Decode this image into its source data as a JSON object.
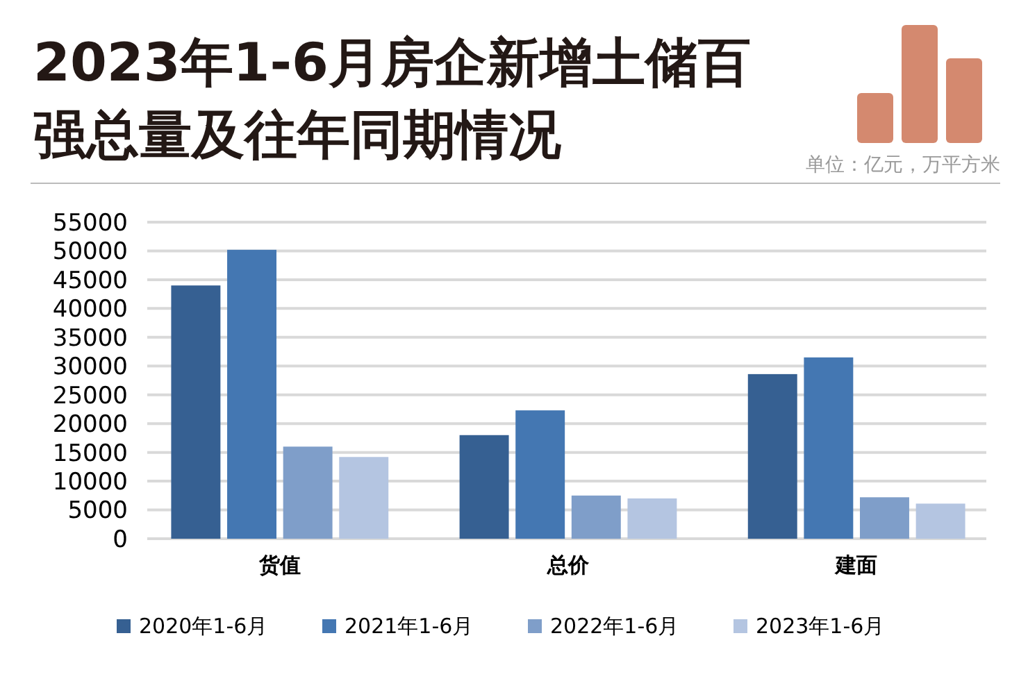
{
  "chart_data": {
    "type": "bar",
    "title": "2023年1-6月房企新增土储百强总量及往年同期情况",
    "subtitle": "单位：亿元，万平方米",
    "categories": [
      "货值",
      "总价",
      "建面"
    ],
    "series": [
      {
        "name": "2020年1-6月",
        "color": "#366092",
        "values": [
          44000,
          18000,
          28600
        ]
      },
      {
        "name": "2021年1-6月",
        "color": "#4477b2",
        "values": [
          50200,
          22300,
          31500
        ]
      },
      {
        "name": "2022年1-6月",
        "color": "#7f9ec9",
        "values": [
          16000,
          7500,
          7200
        ]
      },
      {
        "name": "2023年1-6月",
        "color": "#b4c5e1",
        "values": [
          14200,
          7000,
          6100
        ]
      }
    ],
    "ylim": [
      0,
      55000
    ],
    "yticks": [
      0,
      5000,
      10000,
      15000,
      20000,
      25000,
      30000,
      35000,
      40000,
      45000,
      50000,
      55000
    ],
    "grid": "y",
    "legend": "bottom"
  }
}
